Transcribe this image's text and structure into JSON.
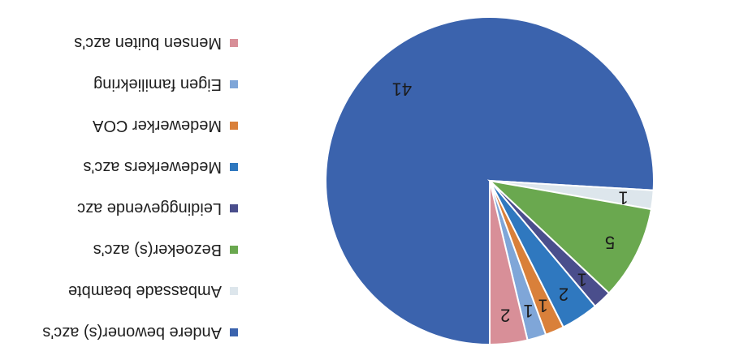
{
  "chart_data": {
    "type": "pie",
    "title": "",
    "categories": [
      "Andere bewoner(s) azc's",
      "Ambassade beambte",
      "Bezoeker(s) azc's",
      "Leidinggevende azc",
      "Medewerkers azc's",
      "Medewerker COA",
      "Eigen familiekring",
      "Mensen buiten azc's"
    ],
    "values": [
      41,
      1,
      5,
      1,
      2,
      1,
      1,
      2
    ],
    "colors": [
      "#3b63ad",
      "#dde6ec",
      "#6aa84f",
      "#4a4e8c",
      "#2f78bf",
      "#d9803a",
      "#7fa6d8",
      "#d88f98"
    ],
    "legend_position": "right",
    "data_labels": true
  }
}
